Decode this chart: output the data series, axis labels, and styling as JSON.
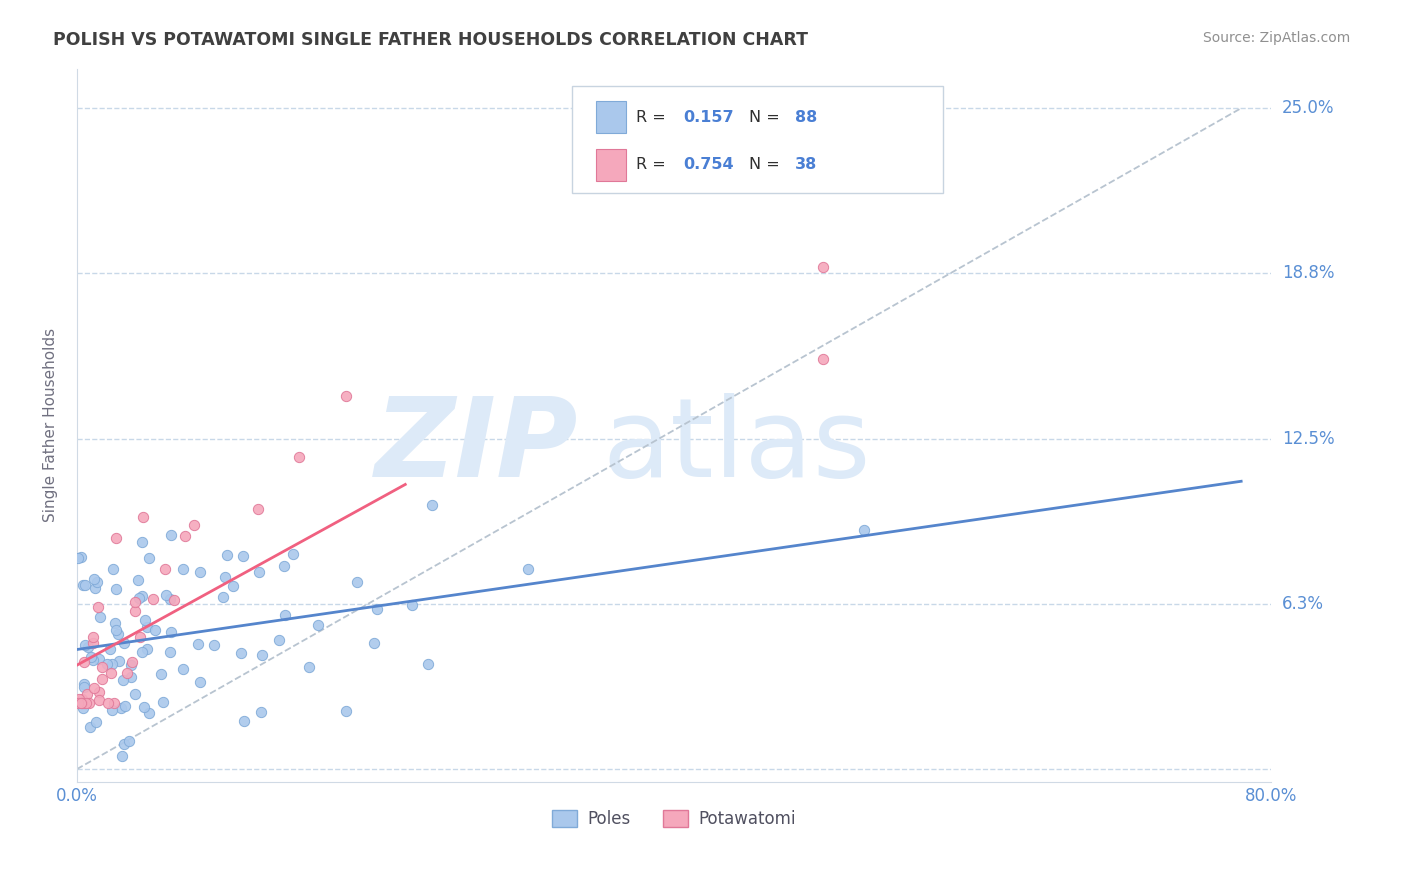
{
  "title": "POLISH VS POTAWATOMI SINGLE FATHER HOUSEHOLDS CORRELATION CHART",
  "source": "Source: ZipAtlas.com",
  "ylabel": "Single Father Households",
  "xlim": [
    0,
    0.8
  ],
  "ylim": [
    -0.005,
    0.265
  ],
  "ytick_vals": [
    0.0,
    0.0625,
    0.125,
    0.1875,
    0.25
  ],
  "ytick_right_labels": [
    "25.0%",
    "18.8%",
    "12.5%",
    "6.3%"
  ],
  "ytick_right_vals": [
    0.25,
    0.1875,
    0.125,
    0.0625
  ],
  "xtick_labels": [
    "0.0%",
    "80.0%"
  ],
  "xtick_vals": [
    0.0,
    0.8
  ],
  "title_color": "#404040",
  "source_color": "#909090",
  "axis_label_color": "#5a8fd4",
  "grid_color": "#c8d8e8",
  "poles_color": "#aac8ec",
  "poles_edge_color": "#80aad8",
  "potawatomi_color": "#f5a8bc",
  "potawatomi_edge_color": "#e07898",
  "poles_line_color": "#5585cc",
  "potawatomi_line_color": "#f06080",
  "dash_line_color": "#b8c4d0",
  "legend_text_color": "#303030",
  "legend_val_color": "#4a7fd4",
  "legend_r1_label": "R = ",
  "legend_r1_val": "0.157",
  "legend_n1_label": "N = ",
  "legend_n1_val": "88",
  "legend_r2_val": "0.754",
  "legend_n2_val": "38",
  "bottom_legend_poles": "Poles",
  "bottom_legend_pota": "Potawatomi",
  "scatter_size": 55
}
